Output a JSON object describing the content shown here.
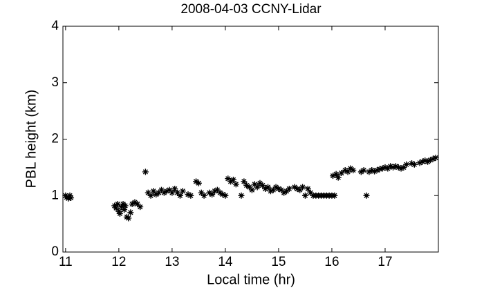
{
  "chart_data": {
    "type": "scatter",
    "title": "2008-04-03 CCNY-Lidar",
    "x_label": "Local time (hr)",
    "y_label": "PBL height (km)",
    "marker": "star",
    "color": "#000000",
    "xlim": [
      10.95,
      18.0
    ],
    "ylim": [
      0,
      4
    ],
    "xticks": [
      11,
      12,
      13,
      14,
      15,
      16,
      17
    ],
    "yticks": [
      0,
      1,
      2,
      3,
      4
    ],
    "x": [
      11.0,
      11.02,
      11.05,
      11.08,
      11.1,
      11.92,
      11.95,
      11.98,
      12.0,
      12.02,
      12.05,
      12.08,
      12.1,
      12.12,
      12.15,
      12.18,
      12.22,
      12.25,
      12.3,
      12.35,
      12.4,
      12.5,
      12.55,
      12.6,
      12.65,
      12.7,
      12.75,
      12.8,
      12.85,
      12.9,
      12.95,
      13.0,
      13.05,
      13.1,
      13.15,
      13.2,
      13.3,
      13.35,
      13.45,
      13.5,
      13.55,
      13.6,
      13.7,
      13.75,
      13.8,
      13.85,
      13.9,
      13.95,
      14.0,
      14.05,
      14.1,
      14.15,
      14.2,
      14.3,
      14.35,
      14.4,
      14.45,
      14.5,
      14.55,
      14.6,
      14.65,
      14.7,
      14.75,
      14.8,
      14.85,
      14.9,
      14.95,
      15.0,
      15.05,
      15.1,
      15.15,
      15.2,
      15.3,
      15.35,
      15.4,
      15.45,
      15.5,
      15.55,
      15.6,
      15.65,
      15.7,
      15.75,
      15.8,
      15.85,
      15.9,
      15.95,
      16.0,
      16.05,
      16.02,
      16.08,
      16.12,
      16.18,
      16.25,
      16.3,
      16.35,
      16.4,
      16.55,
      16.6,
      16.65,
      16.7,
      16.75,
      16.8,
      16.85,
      16.9,
      16.95,
      17.0,
      17.05,
      17.1,
      17.15,
      17.2,
      17.25,
      17.3,
      17.35,
      17.4,
      17.5,
      17.55,
      17.65,
      17.7,
      17.75,
      17.8,
      17.85,
      17.9,
      17.95
    ],
    "values": [
      1.0,
      0.97,
      0.95,
      1.0,
      0.96,
      0.82,
      0.78,
      0.85,
      0.72,
      0.68,
      0.8,
      0.85,
      0.75,
      0.82,
      0.62,
      0.6,
      0.7,
      0.85,
      0.88,
      0.85,
      0.8,
      1.42,
      1.05,
      1.0,
      1.08,
      1.02,
      1.05,
      1.1,
      1.05,
      1.08,
      1.1,
      1.05,
      1.12,
      1.05,
      1.0,
      1.08,
      1.02,
      1.0,
      1.25,
      1.22,
      1.05,
      1.0,
      1.05,
      1.02,
      1.08,
      1.1,
      1.05,
      1.02,
      1.0,
      1.3,
      1.25,
      1.28,
      1.2,
      1.0,
      1.25,
      1.18,
      1.15,
      1.1,
      1.2,
      1.15,
      1.22,
      1.18,
      1.12,
      1.15,
      1.08,
      1.1,
      1.15,
      1.12,
      1.1,
      1.05,
      1.08,
      1.12,
      1.15,
      1.12,
      1.1,
      1.15,
      1.0,
      1.12,
      1.05,
      1.0,
      1.0,
      1.0,
      1.0,
      1.0,
      1.0,
      1.0,
      1.0,
      1.0,
      1.35,
      1.38,
      1.32,
      1.4,
      1.45,
      1.42,
      1.48,
      1.45,
      1.42,
      1.45,
      1.0,
      1.42,
      1.45,
      1.43,
      1.45,
      1.47,
      1.48,
      1.5,
      1.48,
      1.52,
      1.5,
      1.52,
      1.5,
      1.48,
      1.5,
      1.55,
      1.57,
      1.55,
      1.58,
      1.6,
      1.62,
      1.6,
      1.63,
      1.65,
      1.67
    ]
  }
}
